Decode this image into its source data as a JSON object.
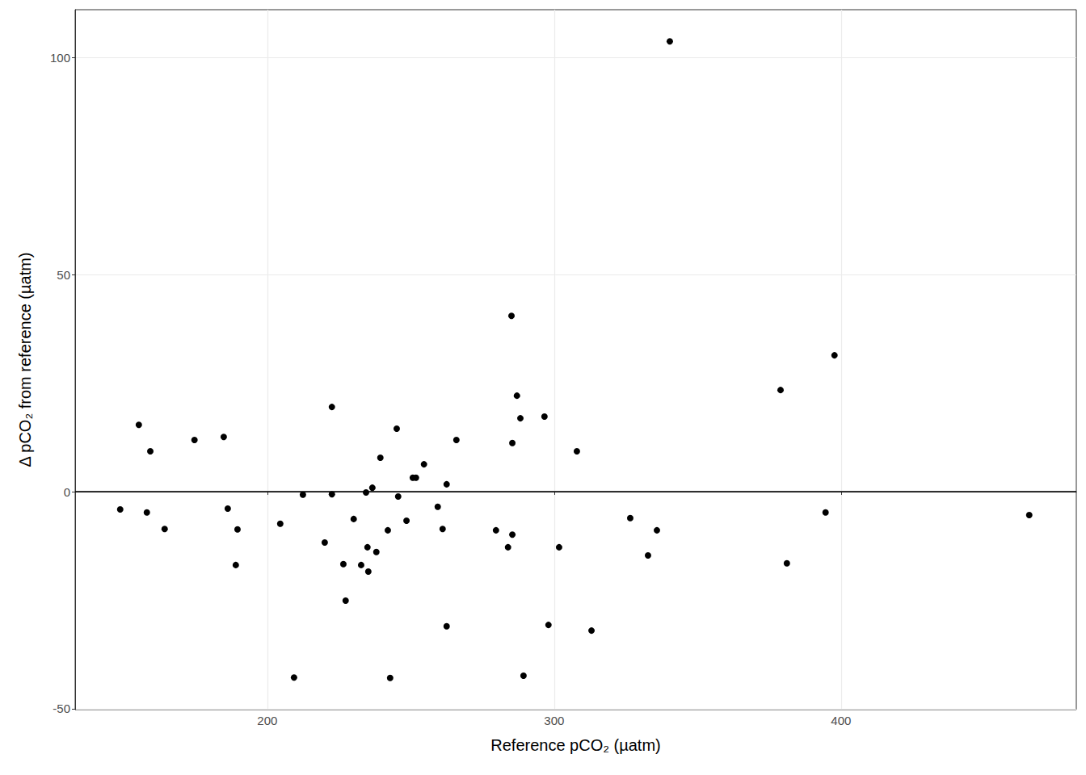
{
  "chart_data": {
    "type": "scatter",
    "x_label": "Reference pCO₂ (µatm)",
    "y_label": "Δ pCO₂ from reference (µatm)",
    "xlim": [
      133,
      482
    ],
    "ylim": [
      -50.2,
      111
    ],
    "xticks": [
      200,
      300,
      400
    ],
    "yticks": [
      -50,
      0,
      50,
      100
    ],
    "grid": true,
    "color": "#000000",
    "marker": "circle",
    "hline": 0,
    "x": [
      148.7,
      155.2,
      158.0,
      159.2,
      164.2,
      174.6,
      184.8,
      186.2,
      189.6,
      189.0,
      204.5,
      209.3,
      212.4,
      220.0,
      222.5,
      222.5,
      226.5,
      227.3,
      230.1,
      232.7,
      234.4,
      234.9,
      235.2,
      236.6,
      238.0,
      239.4,
      242.0,
      242.8,
      245.1,
      245.6,
      248.5,
      250.7,
      251.8,
      254.6,
      259.4,
      261.1,
      262.5,
      262.5,
      265.9,
      279.7,
      283.9,
      285.1,
      285.4,
      285.4,
      287.0,
      288.2,
      289.3,
      296.6,
      298.0,
      301.7,
      307.9,
      313.0,
      326.5,
      332.7,
      335.8,
      340.3,
      378.9,
      381.1,
      394.6,
      397.7,
      465.6
    ],
    "values": [
      -4.1,
      15.4,
      -4.8,
      9.3,
      -8.6,
      11.9,
      12.6,
      -3.9,
      -8.7,
      -16.9,
      -7.4,
      -42.8,
      -0.7,
      -11.7,
      -0.6,
      19.5,
      -16.7,
      -25.1,
      -6.3,
      -16.9,
      -0.2,
      -12.8,
      -18.4,
      0.9,
      -13.9,
      7.8,
      -8.9,
      -42.9,
      14.5,
      -1.1,
      -6.7,
      3.2,
      3.2,
      6.3,
      -3.5,
      -8.6,
      1.7,
      -31.0,
      11.9,
      -8.9,
      -12.8,
      40.5,
      11.2,
      -9.9,
      22.1,
      16.9,
      -42.4,
      17.3,
      -30.7,
      -12.8,
      9.3,
      -32.0,
      -6.1,
      -14.7,
      -8.9,
      103.7,
      23.4,
      -16.5,
      -4.8,
      31.4,
      -5.4
    ]
  }
}
